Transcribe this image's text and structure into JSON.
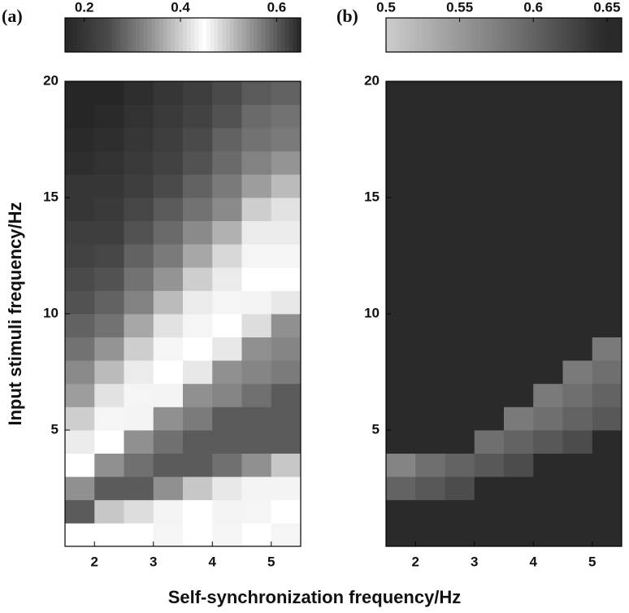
{
  "chart_data": [
    {
      "type": "heatmap",
      "panel_label": "(a)",
      "xlabel": "Self-synchronization frequency/Hz",
      "ylabel": "Input stimuli frequency/Hz",
      "x": [
        1.75,
        2.25,
        2.75,
        3.25,
        3.75,
        4.25,
        4.75,
        5.25
      ],
      "y": [
        0.5,
        1.5,
        2.5,
        3.5,
        4.5,
        5.5,
        6.5,
        7.5,
        8.5,
        9.5,
        10.5,
        11.5,
        12.5,
        13.5,
        14.5,
        15.5,
        16.5,
        17.5,
        18.5,
        19.5
      ],
      "z": [
        [
          0.45,
          0.45,
          0.45,
          0.44,
          0.45,
          0.44,
          0.45,
          0.44
        ],
        [
          0.6,
          0.5,
          0.48,
          0.46,
          0.45,
          0.46,
          0.44,
          0.45
        ],
        [
          0.55,
          0.6,
          0.6,
          0.55,
          0.5,
          0.47,
          0.46,
          0.46
        ],
        [
          0.45,
          0.55,
          0.58,
          0.6,
          0.6,
          0.58,
          0.55,
          0.5
        ],
        [
          0.43,
          0.45,
          0.55,
          0.58,
          0.6,
          0.6,
          0.6,
          0.6
        ],
        [
          0.4,
          0.44,
          0.46,
          0.55,
          0.57,
          0.6,
          0.6,
          0.6
        ],
        [
          0.35,
          0.42,
          0.44,
          0.46,
          0.55,
          0.56,
          0.58,
          0.6
        ],
        [
          0.33,
          0.38,
          0.43,
          0.45,
          0.47,
          0.55,
          0.56,
          0.57
        ],
        [
          0.3,
          0.34,
          0.4,
          0.44,
          0.45,
          0.47,
          0.55,
          0.56
        ],
        [
          0.28,
          0.3,
          0.36,
          0.42,
          0.44,
          0.45,
          0.48,
          0.55
        ],
        [
          0.26,
          0.28,
          0.32,
          0.38,
          0.43,
          0.44,
          0.46,
          0.47
        ],
        [
          0.25,
          0.26,
          0.3,
          0.34,
          0.4,
          0.43,
          0.45,
          0.45
        ],
        [
          0.23,
          0.24,
          0.28,
          0.31,
          0.36,
          0.41,
          0.44,
          0.44
        ],
        [
          0.22,
          0.22,
          0.26,
          0.29,
          0.33,
          0.37,
          0.43,
          0.43
        ],
        [
          0.2,
          0.21,
          0.24,
          0.27,
          0.3,
          0.33,
          0.4,
          0.42
        ],
        [
          0.2,
          0.2,
          0.22,
          0.25,
          0.28,
          0.31,
          0.35,
          0.38
        ],
        [
          0.18,
          0.19,
          0.21,
          0.23,
          0.26,
          0.29,
          0.32,
          0.34
        ],
        [
          0.17,
          0.18,
          0.2,
          0.22,
          0.25,
          0.28,
          0.3,
          0.31
        ],
        [
          0.16,
          0.17,
          0.19,
          0.21,
          0.23,
          0.26,
          0.29,
          0.3
        ],
        [
          0.15,
          0.16,
          0.18,
          0.2,
          0.22,
          0.25,
          0.27,
          0.28
        ]
      ],
      "xlim": [
        1.5,
        5.5
      ],
      "ylim": [
        0,
        20
      ],
      "xticks": [
        2,
        3,
        4,
        5
      ],
      "yticks": [
        5,
        10,
        15,
        20
      ],
      "clim": [
        0.16,
        0.65
      ],
      "cticks": [
        0.2,
        0.4,
        0.6
      ],
      "colormap": [
        [
          0.16,
          "#262626"
        ],
        [
          0.25,
          "#4a4a4a"
        ],
        [
          0.33,
          "#8a8a8a"
        ],
        [
          0.45,
          "#ffffff"
        ],
        [
          0.52,
          "#b0b0b0"
        ],
        [
          0.58,
          "#707070"
        ],
        [
          0.65,
          "#262626"
        ]
      ]
    },
    {
      "type": "heatmap",
      "panel_label": "(b)",
      "x": [
        1.75,
        2.25,
        2.75,
        3.25,
        3.75,
        4.25,
        4.75,
        5.25
      ],
      "y": [
        0.5,
        1.5,
        2.5,
        3.5,
        4.5,
        5.5,
        6.5,
        7.5,
        8.5,
        9.5,
        10.5,
        11.5,
        12.5,
        13.5,
        14.5,
        15.5,
        16.5,
        17.5,
        18.5,
        19.5
      ],
      "z": [
        [
          0.65,
          0.65,
          0.65,
          0.65,
          0.65,
          0.65,
          0.65,
          0.65
        ],
        [
          0.65,
          0.65,
          0.65,
          0.65,
          0.65,
          0.65,
          0.65,
          0.65
        ],
        [
          0.6,
          0.61,
          0.62,
          0.65,
          0.65,
          0.65,
          0.65,
          0.65
        ],
        [
          0.57,
          0.59,
          0.6,
          0.61,
          0.62,
          0.65,
          0.65,
          0.65
        ],
        [
          0.65,
          0.65,
          0.65,
          0.59,
          0.6,
          0.61,
          0.62,
          0.65
        ],
        [
          0.65,
          0.65,
          0.65,
          0.65,
          0.58,
          0.59,
          0.6,
          0.61
        ],
        [
          0.65,
          0.65,
          0.65,
          0.65,
          0.65,
          0.58,
          0.59,
          0.6
        ],
        [
          0.65,
          0.65,
          0.65,
          0.65,
          0.65,
          0.65,
          0.58,
          0.59
        ],
        [
          0.65,
          0.65,
          0.65,
          0.65,
          0.65,
          0.65,
          0.65,
          0.58
        ],
        [
          0.65,
          0.65,
          0.65,
          0.65,
          0.65,
          0.65,
          0.65,
          0.65
        ],
        [
          0.65,
          0.65,
          0.65,
          0.65,
          0.65,
          0.65,
          0.65,
          0.65
        ],
        [
          0.65,
          0.65,
          0.65,
          0.65,
          0.65,
          0.65,
          0.65,
          0.65
        ],
        [
          0.65,
          0.65,
          0.65,
          0.65,
          0.65,
          0.65,
          0.65,
          0.65
        ],
        [
          0.65,
          0.65,
          0.65,
          0.65,
          0.65,
          0.65,
          0.65,
          0.65
        ],
        [
          0.65,
          0.65,
          0.65,
          0.65,
          0.65,
          0.65,
          0.65,
          0.65
        ],
        [
          0.65,
          0.65,
          0.65,
          0.65,
          0.65,
          0.65,
          0.65,
          0.65
        ],
        [
          0.65,
          0.65,
          0.65,
          0.65,
          0.65,
          0.65,
          0.65,
          0.65
        ],
        [
          0.65,
          0.65,
          0.65,
          0.65,
          0.65,
          0.65,
          0.65,
          0.65
        ],
        [
          0.65,
          0.65,
          0.65,
          0.65,
          0.65,
          0.65,
          0.65,
          0.65
        ],
        [
          0.65,
          0.65,
          0.65,
          0.65,
          0.65,
          0.65,
          0.65,
          0.65
        ]
      ],
      "xlim": [
        1.5,
        5.5
      ],
      "ylim": [
        0,
        20
      ],
      "xticks": [
        2,
        3,
        4,
        5
      ],
      "yticks": [
        5,
        10,
        15,
        20
      ],
      "clim": [
        0.5,
        0.66
      ],
      "cticks": [
        0.5,
        0.55,
        0.6,
        0.65
      ],
      "colormap": [
        [
          0.5,
          "#cccccc"
        ],
        [
          0.58,
          "#7a7a7a"
        ],
        [
          0.65,
          "#2a2a2a"
        ]
      ]
    }
  ]
}
